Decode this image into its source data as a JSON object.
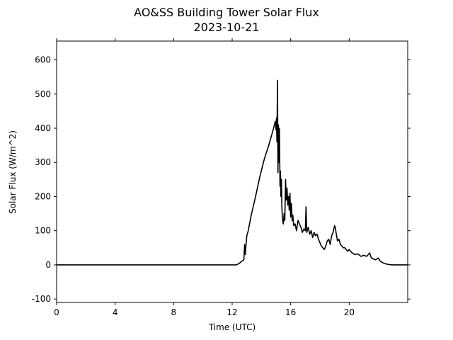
{
  "chart_data": {
    "type": "line",
    "title": "AO&SS Building Tower Solar Flux",
    "subtitle": "2023-10-21",
    "xlabel": "Time (UTC)",
    "ylabel": "Solar Flux (W/m^2)",
    "xlim": [
      0,
      24
    ],
    "ylim": [
      -110,
      655
    ],
    "xticks": [
      0,
      4,
      8,
      12,
      16,
      20
    ],
    "yticks": [
      -100,
      0,
      100,
      200,
      300,
      400,
      500,
      600
    ],
    "grid": false,
    "line_color": "#000000",
    "series": [
      {
        "x": [
          0,
          12.3,
          12.5,
          12.7,
          12.8,
          12.85,
          12.9,
          12.95,
          13.0,
          13.1,
          13.3,
          13.6,
          13.9,
          14.2,
          14.5,
          14.8,
          14.95,
          15.0,
          15.03,
          15.06,
          15.1,
          15.13,
          15.16,
          15.2,
          15.23,
          15.27,
          15.3,
          15.33,
          15.37,
          15.4,
          15.45,
          15.5,
          15.55,
          15.6,
          15.65,
          15.7,
          15.75,
          15.8,
          15.85,
          15.9,
          15.95,
          16.0,
          16.05,
          16.1,
          16.15,
          16.2,
          16.3,
          16.4,
          16.5,
          16.6,
          16.7,
          16.8,
          16.9,
          17.0,
          17.05,
          17.1,
          17.2,
          17.3,
          17.4,
          17.5,
          17.6,
          17.7,
          17.8,
          17.9,
          18.0,
          18.1,
          18.2,
          18.3,
          18.4,
          18.5,
          18.6,
          18.7,
          18.8,
          18.9,
          19.0,
          19.05,
          19.1,
          19.2,
          19.3,
          19.4,
          19.5,
          19.6,
          19.7,
          19.8,
          19.9,
          20.0,
          20.2,
          20.4,
          20.6,
          20.8,
          21.0,
          21.2,
          21.4,
          21.5,
          21.6,
          21.8,
          22.0,
          22.1,
          22.3,
          22.5,
          22.7,
          23.0,
          23.3,
          24.0
        ],
        "y": [
          0,
          0,
          5,
          12,
          15,
          60,
          30,
          60,
          85,
          100,
          145,
          200,
          260,
          310,
          350,
          395,
          420,
          395,
          430,
          360,
          540,
          270,
          410,
          300,
          400,
          230,
          275,
          200,
          250,
          165,
          130,
          120,
          150,
          130,
          250,
          190,
          225,
          175,
          200,
          160,
          210,
          140,
          180,
          130,
          145,
          115,
          120,
          100,
          130,
          120,
          110,
          95,
          105,
          100,
          170,
          95,
          110,
          90,
          100,
          80,
          95,
          85,
          90,
          75,
          65,
          55,
          50,
          45,
          55,
          70,
          75,
          60,
          85,
          95,
          115,
          110,
          95,
          70,
          75,
          60,
          55,
          50,
          50,
          45,
          40,
          45,
          35,
          30,
          32,
          25,
          28,
          25,
          35,
          22,
          18,
          15,
          20,
          12,
          6,
          3,
          1,
          0,
          0,
          0
        ]
      }
    ]
  }
}
